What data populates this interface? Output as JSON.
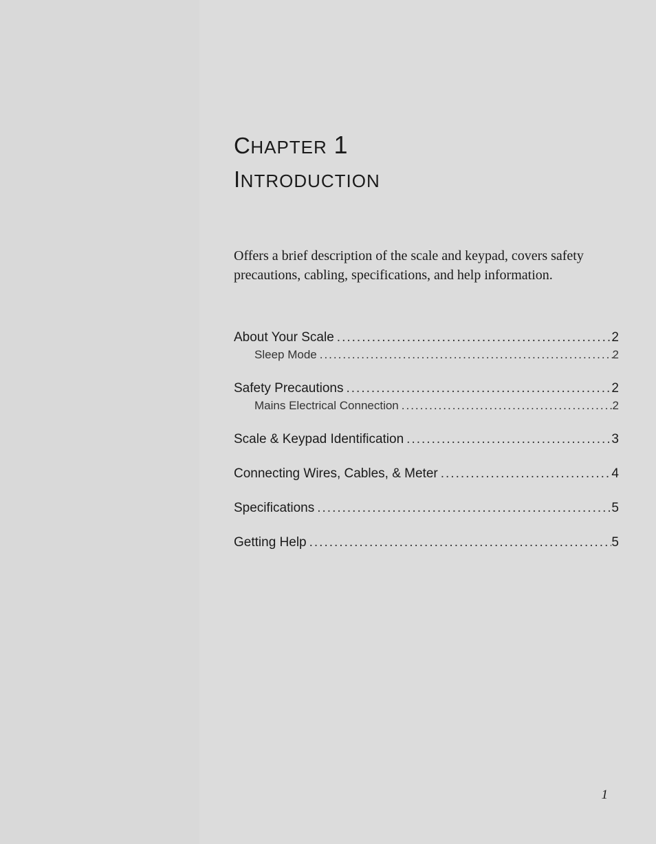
{
  "chapter": {
    "prefix_cap": "C",
    "prefix_sc": "HAPTER",
    "number": "1"
  },
  "title": {
    "cap": "I",
    "sc": "NTRODUCTION"
  },
  "description": "Offers a brief description of the scale and keypad, covers safety precautions, cabling, specifications, and help information.",
  "toc": [
    {
      "level": 1,
      "label": "About Your Scale",
      "page": "2"
    },
    {
      "level": 2,
      "label": "Sleep Mode",
      "page": "2"
    },
    {
      "level": 1,
      "label": "Safety Precautions",
      "page": "2"
    },
    {
      "level": 2,
      "label": "Mains Electrical Connection",
      "page": "2"
    },
    {
      "level": 1,
      "label": "Scale & Keypad Identification",
      "page": "3"
    },
    {
      "level": 1,
      "label": "Connecting Wires, Cables, & Meter",
      "page": "4"
    },
    {
      "level": 1,
      "label": "Specifications",
      "page": "5"
    },
    {
      "level": 1,
      "label": "Getting Help",
      "page": "5"
    }
  ],
  "page_number": "1",
  "leader_dots": "................................................................................................................................",
  "colors": {
    "page_bg": "#dcdcdc",
    "sidebar_bg": "#d9d9d9",
    "text": "#1a1a1a"
  },
  "fonts": {
    "heading_family": "Century Gothic",
    "body_family": "Adobe Garamond Pro",
    "heading_size": 33,
    "body_size": 20,
    "toc_l1_size": 19,
    "toc_l2_size": 17
  }
}
